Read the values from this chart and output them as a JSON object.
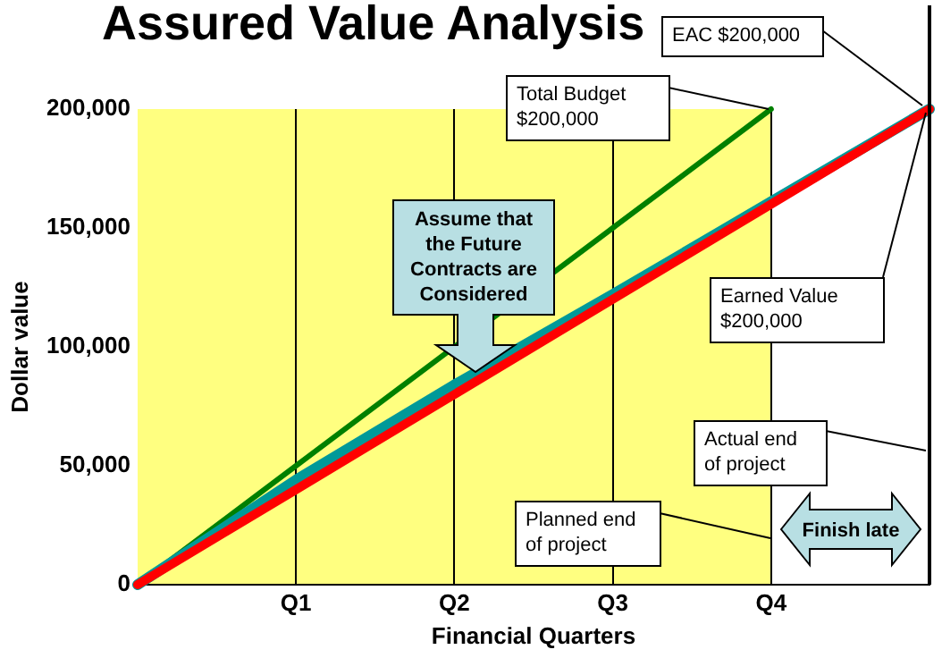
{
  "chart_data": {
    "type": "line",
    "title": "Assured Value Analysis",
    "xlabel": "Financial Quarters",
    "ylabel": "Dollar value",
    "categories": [
      null,
      "Q1",
      "Q2",
      "Q3",
      "Q4",
      null
    ],
    "ylim": [
      0,
      200000
    ],
    "yticks": [
      0,
      {
        "value": 50000,
        "label": "50,000"
      },
      {
        "value": 100000,
        "label": "100,000"
      },
      {
        "value": 150000,
        "label": "150,000"
      },
      {
        "value": 200000,
        "label": "200,000"
      }
    ],
    "grid": "x",
    "legend": false,
    "series": [
      {
        "color": "#008000",
        "values": [
          0,
          50000,
          null,
          150000,
          200000,
          null
        ]
      },
      {
        "color": "#009999",
        "values": [
          0,
          44000,
          84000,
          122000,
          161000,
          200000
        ]
      },
      {
        "color": "#ff0000",
        "values": [
          0,
          40000,
          80000,
          120000,
          160000,
          200000
        ]
      }
    ],
    "annotations": [
      "EAC $200,000",
      "Total Budget $200,000",
      "Earned Value $200,000",
      "Assume that the Future Contracts are Considered",
      "Actual end of project",
      "Planned end of project",
      "Finish late"
    ]
  }
}
